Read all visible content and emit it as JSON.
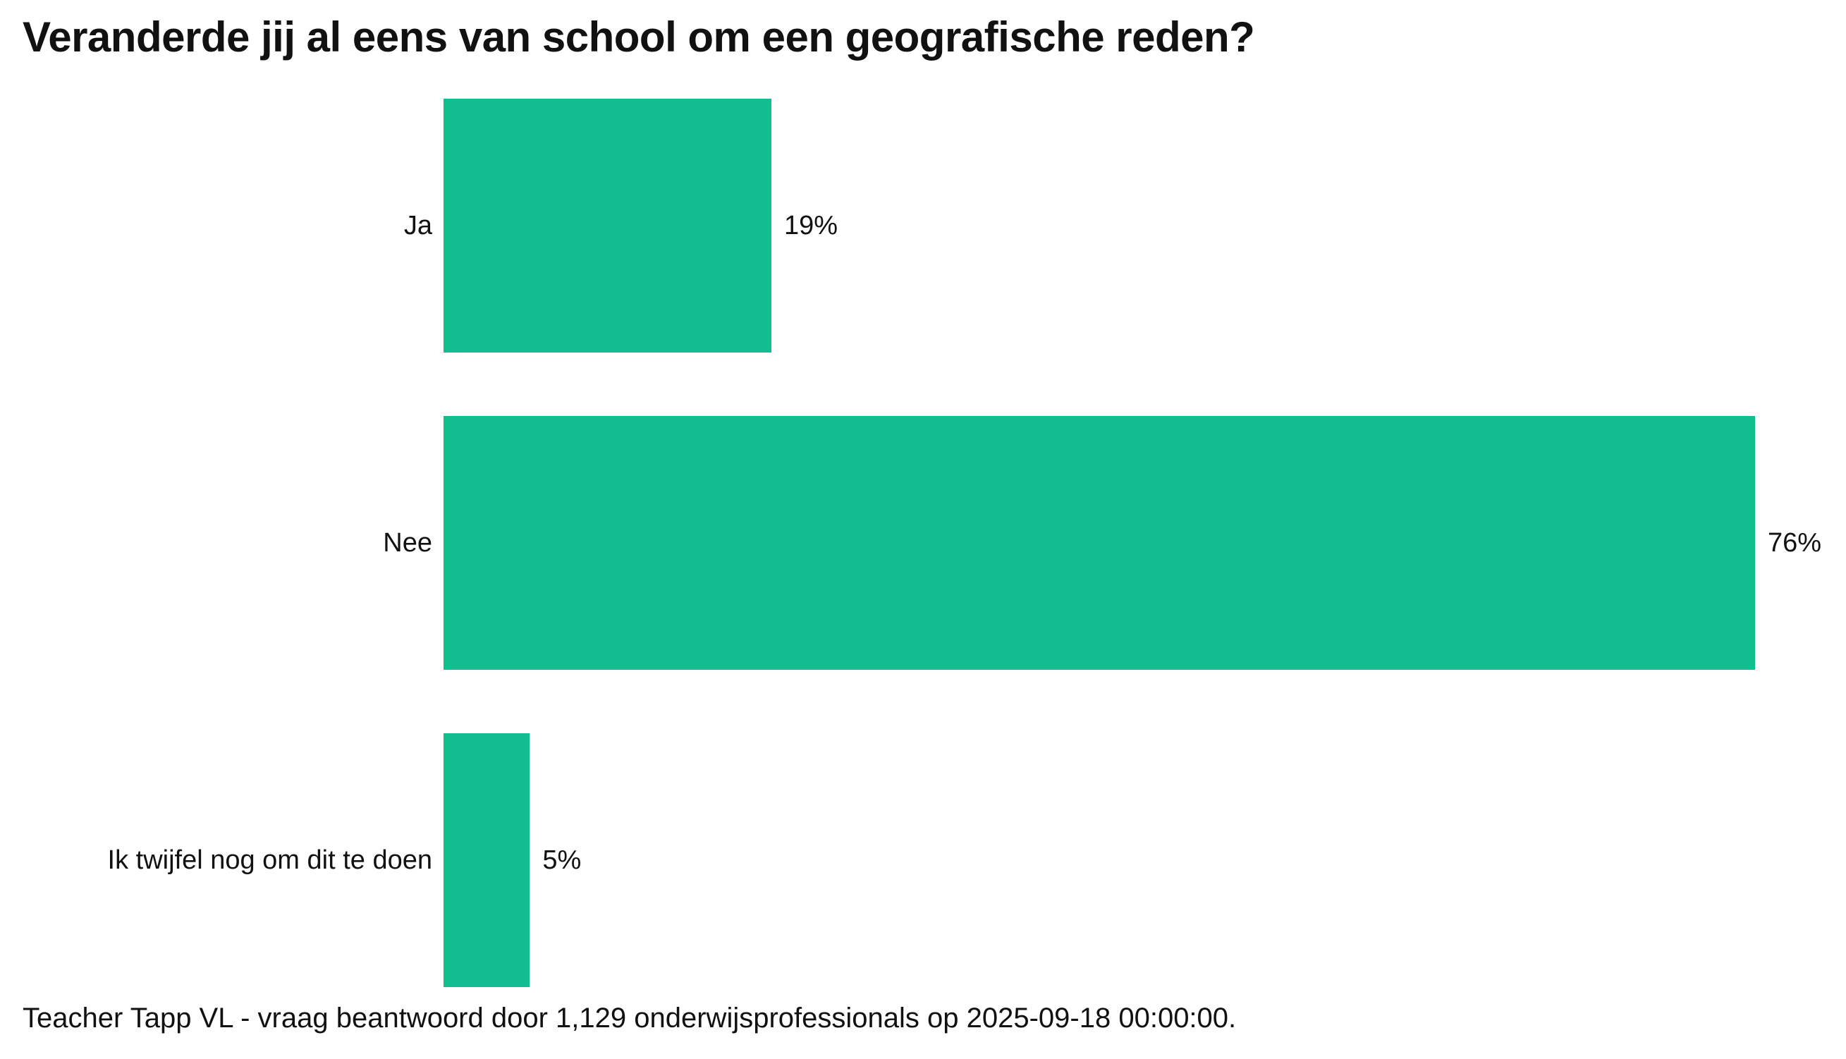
{
  "chart_data": {
    "type": "bar",
    "orientation": "horizontal",
    "title": "Veranderde jij al eens van school om een geografische reden?",
    "categories": [
      "Ja",
      "Nee",
      "Ik twijfel nog om dit te doen"
    ],
    "values": [
      19,
      76,
      5
    ],
    "value_labels": [
      "19%",
      "76%",
      "5%"
    ],
    "unit": "%",
    "xlim": [
      0,
      76
    ],
    "grid": false,
    "legend": "none",
    "bar_color": "#12BD90"
  },
  "footer": "Teacher Tapp VL - vraag beantwoord door 1,129 onderwijsprofessionals op 2025-09-18 00:00:00."
}
